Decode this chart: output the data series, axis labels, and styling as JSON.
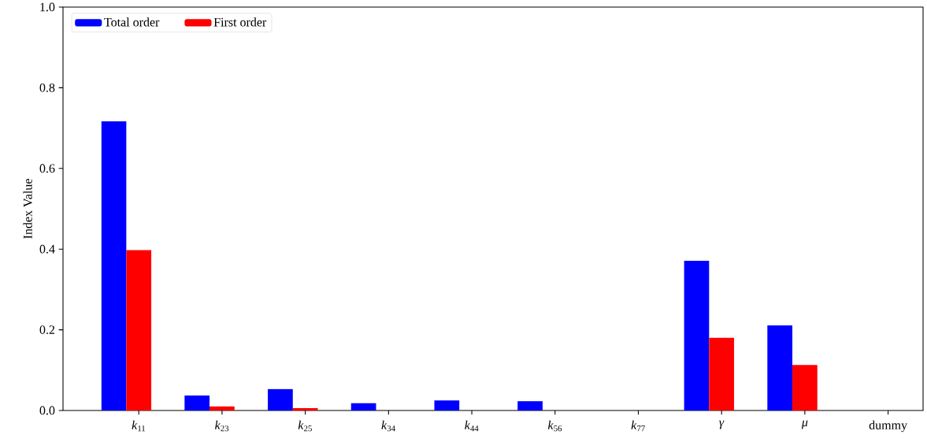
{
  "chart_data": {
    "type": "bar",
    "ylabel": "Index Value",
    "categories": [
      "*k*$_{11}$",
      "*k*$_{23}$",
      "*k*$_{25}$",
      "*k*$_{34}$",
      "*k*$_{44}$",
      "*k*$_{56}$",
      "*k*$_{77}$",
      "*γ*",
      "*μ*",
      "dummy"
    ],
    "series": [
      {
        "name": "Total order",
        "color": "#0000ff",
        "values": [
          0.717,
          0.037,
          0.053,
          0.018,
          0.025,
          0.023,
          0,
          0.371,
          0.211,
          0
        ]
      },
      {
        "name": "First order",
        "color": "#ff0000",
        "values": [
          0.398,
          0.01,
          0.006,
          0,
          0,
          0,
          0,
          0.18,
          0.113,
          0
        ]
      }
    ],
    "ylim": [
      0,
      1
    ],
    "yticks": [
      {
        "value": 0,
        "label": "0.0"
      },
      0.2,
      0.4,
      0.6,
      0.8,
      {
        "value": 1,
        "label": "1.0"
      }
    ],
    "legend": "top left"
  }
}
